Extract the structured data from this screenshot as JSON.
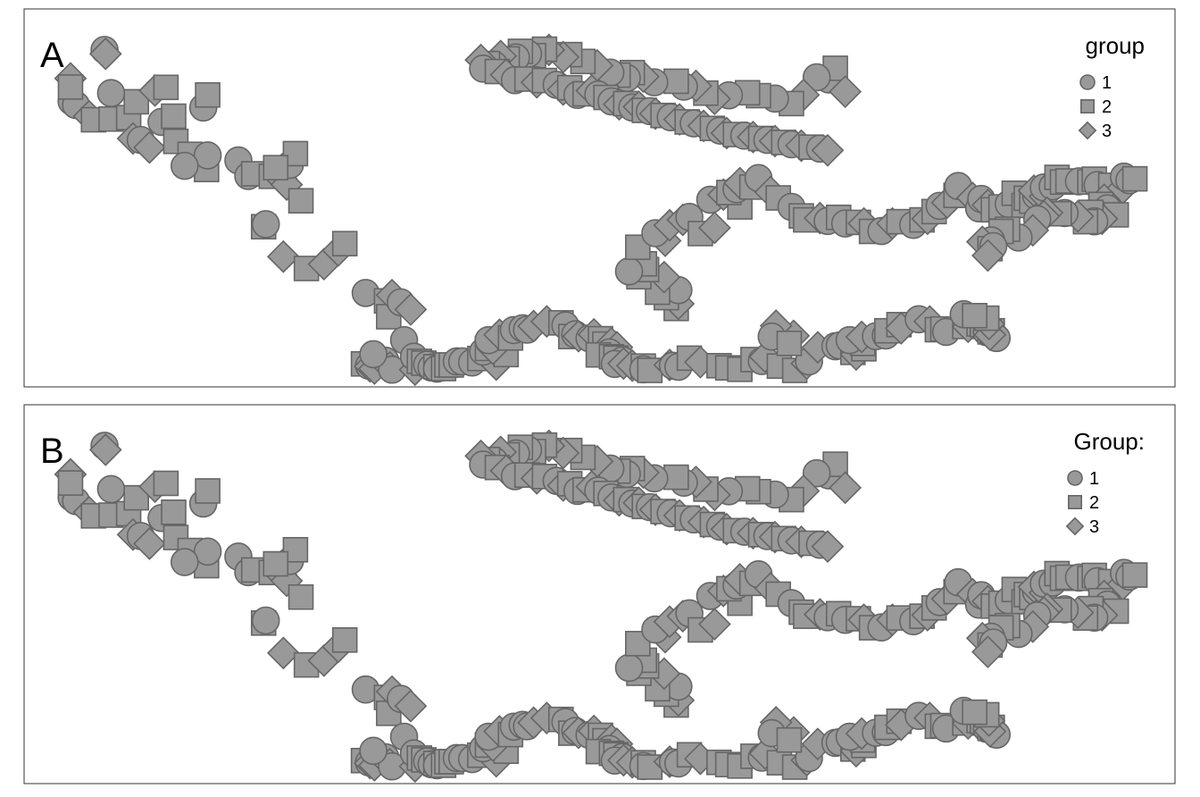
{
  "chart_data": {
    "type": "scatter",
    "xlim": [
      0,
      100
    ],
    "ylim": [
      0,
      100
    ],
    "grid": false,
    "legend_position": "top-right",
    "fill_color": "#999999",
    "stroke_color": "#666666",
    "shape_order": [
      "circle",
      "square",
      "diamond"
    ],
    "panels": [
      {
        "tag": "A",
        "legend_title": "group"
      },
      {
        "tag": "B",
        "legend_title": "Group:"
      }
    ],
    "groups": [
      {
        "label": "1",
        "shape": "circle"
      },
      {
        "label": "2",
        "shape": "square"
      },
      {
        "label": "3",
        "shape": "diamond"
      }
    ],
    "points": [
      [
        5.7,
        91.1,
        1
      ],
      [
        5.8,
        90.0,
        3
      ],
      [
        2.7,
        76.8,
        1
      ],
      [
        3.1,
        75.8,
        1
      ],
      [
        2.6,
        83.2,
        3
      ],
      [
        2.6,
        80.8,
        2
      ],
      [
        4.3,
        72.7,
        3
      ],
      [
        4.7,
        71.7,
        2
      ],
      [
        6.3,
        71.9,
        2
      ],
      [
        7.9,
        72.3,
        2
      ],
      [
        6.3,
        79.1,
        1
      ],
      [
        8.3,
        66.5,
        3
      ],
      [
        9.0,
        66.1,
        1
      ],
      [
        8.6,
        76.7,
        2
      ],
      [
        10.9,
        71.1,
        1
      ],
      [
        12.0,
        72.7,
        2
      ],
      [
        10.3,
        79.8,
        3
      ],
      [
        11.3,
        80.7,
        2
      ],
      [
        9.8,
        64.0,
        3
      ],
      [
        12.2,
        65.7,
        2
      ],
      [
        13.5,
        62.1,
        2
      ],
      [
        15.0,
        57.9,
        2
      ],
      [
        15.1,
        61.8,
        1
      ],
      [
        13.0,
        58.9,
        1
      ],
      [
        14.7,
        75.1,
        1
      ],
      [
        15.1,
        78.6,
        2
      ],
      [
        17.9,
        60.4,
        1
      ],
      [
        18.8,
        56.1,
        1
      ],
      [
        19.3,
        56.7,
        2
      ],
      [
        20.9,
        56.0,
        2
      ],
      [
        21.8,
        55.4,
        3
      ],
      [
        22.3,
        53.7,
        3
      ],
      [
        22.6,
        59.2,
        1
      ],
      [
        23.1,
        62.3,
        2
      ],
      [
        21.3,
        58.4,
        2
      ],
      [
        23.6,
        49.2,
        2
      ],
      [
        20.2,
        42.0,
        2
      ],
      [
        20.4,
        42.7,
        1
      ],
      [
        22.0,
        33.7,
        3
      ],
      [
        24.1,
        30.4,
        2
      ],
      [
        25.7,
        31.6,
        3
      ],
      [
        27.0,
        35.4,
        3
      ],
      [
        27.6,
        37.3,
        2
      ],
      [
        29.5,
        23.6,
        1
      ],
      [
        31.4,
        21.4,
        2
      ],
      [
        31.6,
        17.0,
        2
      ],
      [
        31.9,
        23.0,
        3
      ],
      [
        32.7,
        21.0,
        1
      ],
      [
        33.6,
        19.0,
        3
      ],
      [
        33.0,
        10.5,
        1
      ],
      [
        31.3,
        4.8,
        1
      ],
      [
        29.3,
        3.9,
        2
      ],
      [
        29.8,
        3.4,
        1
      ],
      [
        29.9,
        3.2,
        3
      ],
      [
        30.3,
        2.6,
        3
      ],
      [
        31.7,
        2.9,
        3
      ],
      [
        31.9,
        2.3,
        1
      ],
      [
        34.0,
        2.3,
        3
      ],
      [
        30.2,
        6.6,
        1
      ],
      [
        33.9,
        5.9,
        1
      ],
      [
        34.4,
        4.6,
        2
      ],
      [
        34.8,
        4.1,
        2
      ],
      [
        35.1,
        3.7,
        1
      ],
      [
        35.5,
        2.9,
        1
      ],
      [
        35.9,
        3.1,
        2
      ],
      [
        36.0,
        2.6,
        1
      ],
      [
        36.6,
        2.6,
        2
      ],
      [
        36.9,
        3.6,
        2
      ],
      [
        37.3,
        3.6,
        2
      ],
      [
        37.8,
        4.6,
        1
      ],
      [
        38.3,
        4.6,
        1
      ],
      [
        39.2,
        4.3,
        1
      ],
      [
        39.9,
        5.4,
        2
      ],
      [
        41.4,
        3.7,
        3
      ],
      [
        40.2,
        7.3,
        1
      ],
      [
        40.6,
        8.2,
        2
      ],
      [
        41.5,
        7.8,
        3
      ],
      [
        42.3,
        6.5,
        2
      ],
      [
        41.1,
        8.1,
        3
      ],
      [
        40.7,
        10.5,
        1
      ],
      [
        41.7,
        12.0,
        3
      ],
      [
        42.7,
        11.1,
        2
      ],
      [
        43.0,
        13.3,
        1
      ],
      [
        43.8,
        13.8,
        1
      ],
      [
        44.2,
        13.4,
        1
      ],
      [
        44.8,
        14.4,
        3
      ],
      [
        46.0,
        15.7,
        3
      ],
      [
        47.3,
        15.3,
        2
      ],
      [
        47.7,
        14.6,
        1
      ],
      [
        48.2,
        11.5,
        2
      ],
      [
        48.6,
        12.1,
        1
      ],
      [
        48.9,
        11.6,
        3
      ],
      [
        49.9,
        11.0,
        1
      ],
      [
        50.3,
        12.1,
        3
      ],
      [
        50.9,
        10.9,
        2
      ],
      [
        51.3,
        9.4,
        2
      ],
      [
        51.9,
        9.6,
        3
      ],
      [
        52.4,
        8.5,
        3
      ],
      [
        51.7,
        7.1,
        1
      ],
      [
        50.7,
        6.4,
        2
      ],
      [
        51.9,
        5.9,
        2
      ],
      [
        52.3,
        5.5,
        2
      ],
      [
        52.9,
        4.9,
        1
      ],
      [
        52.2,
        3.9,
        1
      ],
      [
        53.0,
        4.0,
        3
      ],
      [
        53.8,
        3.4,
        3
      ],
      [
        54.8,
        3.3,
        2
      ],
      [
        54.8,
        2.4,
        1
      ],
      [
        55.4,
        2.1,
        2
      ],
      [
        57.2,
        3.6,
        3
      ],
      [
        57.5,
        3.4,
        1
      ],
      [
        58.0,
        3.1,
        1
      ],
      [
        59.0,
        5.5,
        2
      ],
      [
        60.0,
        4.4,
        3
      ],
      [
        61.7,
        3.4,
        2
      ],
      [
        62.5,
        2.8,
        2
      ],
      [
        63.6,
        2.4,
        2
      ],
      [
        64.8,
        5.1,
        2
      ],
      [
        65.6,
        4.7,
        1
      ],
      [
        65.9,
        5.9,
        3
      ],
      [
        67.2,
        3.3,
        2
      ],
      [
        68.6,
        2.1,
        2
      ],
      [
        69.7,
        4.0,
        3
      ],
      [
        69.9,
        4.6,
        1
      ],
      [
        68.5,
        11.7,
        3
      ],
      [
        66.9,
        14.5,
        3
      ],
      [
        66.5,
        11.5,
        1
      ],
      [
        68.1,
        9.6,
        2
      ],
      [
        70.7,
        8.5,
        3
      ],
      [
        72.3,
        8.8,
        1
      ],
      [
        72.7,
        9.0,
        1
      ],
      [
        73.9,
        7.1,
        2
      ],
      [
        74.2,
        6.5,
        3
      ],
      [
        74.9,
        8.1,
        2
      ],
      [
        74.8,
        9.6,
        2
      ],
      [
        73.6,
        10.5,
        1
      ],
      [
        74.7,
        11.4,
        3
      ],
      [
        76.0,
        11.6,
        1
      ],
      [
        76.9,
        11.8,
        1
      ],
      [
        77.0,
        13.1,
        2
      ],
      [
        78.1,
        14.8,
        2
      ],
      [
        78.3,
        13.8,
        3
      ],
      [
        79.9,
        16.3,
        1
      ],
      [
        80.9,
        15.7,
        3
      ],
      [
        81.6,
        13.4,
        2
      ],
      [
        82.1,
        13.6,
        2
      ],
      [
        82.4,
        12.8,
        1
      ],
      [
        84.1,
        14.3,
        2
      ],
      [
        84.4,
        14.2,
        3
      ],
      [
        85.4,
        15.0,
        2
      ],
      [
        85.7,
        14.8,
        2
      ],
      [
        86.1,
        12.7,
        1
      ],
      [
        86.4,
        12.8,
        2
      ],
      [
        86.6,
        13.1,
        2
      ],
      [
        87.0,
        11.1,
        1
      ],
      [
        86.4,
        12.0,
        3
      ],
      [
        86.3,
        15.0,
        3
      ],
      [
        86.1,
        16.6,
        2
      ],
      [
        84.0,
        17.7,
        1
      ],
      [
        85.0,
        17.3,
        2
      ],
      [
        57.8,
        19.3,
        2
      ],
      [
        58.0,
        20.6,
        3
      ],
      [
        56.9,
        22.3,
        2
      ],
      [
        58.0,
        24.4,
        1
      ],
      [
        56.1,
        23.8,
        2
      ],
      [
        56.7,
        28.0,
        3
      ],
      [
        54.4,
        28.1,
        2
      ],
      [
        55.1,
        30.1,
        2
      ],
      [
        54.9,
        31.7,
        2
      ],
      [
        53.5,
        29.6,
        1
      ],
      [
        54.3,
        36.3,
        2
      ],
      [
        56.8,
        38.1,
        3
      ],
      [
        55.9,
        40.2,
        1
      ],
      [
        57.2,
        42.4,
        3
      ],
      [
        58.4,
        43.9,
        3
      ],
      [
        59.0,
        44.7,
        1
      ],
      [
        60.0,
        40.1,
        2
      ],
      [
        61.3,
        41.7,
        3
      ],
      [
        63.6,
        47.5,
        2
      ],
      [
        60.9,
        49.5,
        1
      ],
      [
        62.1,
        50.9,
        3
      ],
      [
        62.6,
        51.5,
        2
      ],
      [
        63.3,
        52.4,
        1
      ],
      [
        63.6,
        54.1,
        3
      ],
      [
        64.7,
        53.0,
        2
      ],
      [
        65.3,
        55.5,
        1
      ],
      [
        66.4,
        51.6,
        3
      ],
      [
        67.1,
        50.0,
        2
      ],
      [
        68.3,
        47.5,
        1
      ],
      [
        69.2,
        45.0,
        2
      ],
      [
        69.6,
        43.9,
        2
      ],
      [
        70.9,
        44.4,
        3
      ],
      [
        71.6,
        43.6,
        1
      ],
      [
        72.6,
        44.6,
        2
      ],
      [
        73.2,
        42.9,
        1
      ],
      [
        74.4,
        43.2,
        2
      ],
      [
        74.9,
        42.9,
        3
      ],
      [
        75.6,
        40.7,
        2
      ],
      [
        76.5,
        40.8,
        1
      ],
      [
        77.5,
        42.9,
        3
      ],
      [
        78.1,
        43.4,
        2
      ],
      [
        79.4,
        42.5,
        1
      ],
      [
        80.2,
        43.9,
        2
      ],
      [
        80.7,
        44.2,
        3
      ],
      [
        81.3,
        46.2,
        2
      ],
      [
        81.8,
        47.8,
        1
      ],
      [
        82.5,
        48.7,
        3
      ],
      [
        83.3,
        50.7,
        2
      ],
      [
        83.5,
        53.3,
        1
      ],
      [
        84.8,
        50.0,
        3
      ],
      [
        85.4,
        47.1,
        1
      ],
      [
        85.6,
        49.7,
        1
      ],
      [
        86.2,
        48.0,
        3
      ],
      [
        86.7,
        46.7,
        2
      ],
      [
        87.4,
        47.5,
        2
      ],
      [
        88.1,
        48.3,
        1
      ],
      [
        88.6,
        51.3,
        2
      ],
      [
        89.5,
        47.9,
        2
      ],
      [
        89.7,
        49.9,
        2
      ],
      [
        90.2,
        49.1,
        2
      ],
      [
        90.6,
        50.6,
        1
      ],
      [
        90.4,
        52.0,
        3
      ],
      [
        91.4,
        50.4,
        3
      ],
      [
        91.3,
        52.9,
        1
      ],
      [
        92.1,
        53.2,
        1
      ],
      [
        92.5,
        55.7,
        2
      ],
      [
        93.0,
        54.4,
        2
      ],
      [
        93.5,
        54.7,
        2
      ],
      [
        94.5,
        54.6,
        1
      ],
      [
        95.5,
        54.4,
        2
      ],
      [
        95.9,
        55.2,
        2
      ],
      [
        96.2,
        53.6,
        1
      ],
      [
        97.4,
        53.5,
        2
      ],
      [
        98.5,
        52.7,
        3
      ],
      [
        98.6,
        55.9,
        1
      ],
      [
        99.1,
        54.9,
        1
      ],
      [
        99.6,
        55.3,
        2
      ],
      [
        96.8,
        49.5,
        3
      ],
      [
        96.5,
        48.2,
        2
      ],
      [
        97.1,
        47.1,
        1
      ],
      [
        97.9,
        45.3,
        2
      ],
      [
        96.6,
        44.2,
        3
      ],
      [
        95.6,
        46.0,
        2
      ],
      [
        95.9,
        43.5,
        1
      ],
      [
        95.1,
        43.4,
        2
      ],
      [
        94.4,
        44.9,
        3
      ],
      [
        93.2,
        45.8,
        1
      ],
      [
        92.7,
        45.6,
        2
      ],
      [
        91.6,
        45.9,
        3
      ],
      [
        91.3,
        44.9,
        3
      ],
      [
        90.7,
        44.1,
        1
      ],
      [
        90.3,
        41.0,
        3
      ],
      [
        89.0,
        39.0,
        1
      ],
      [
        88.0,
        41.3,
        2
      ],
      [
        87.4,
        40.7,
        2
      ],
      [
        86.5,
        38.2,
        1
      ],
      [
        85.7,
        37.8,
        3
      ],
      [
        86.4,
        35.9,
        2
      ],
      [
        86.7,
        36.6,
        1
      ],
      [
        86.2,
        34.0,
        3
      ],
      [
        71.7,
        82.9,
        1
      ],
      [
        72.3,
        86.0,
        2
      ],
      [
        73.2,
        79.5,
        3
      ],
      [
        70.6,
        83.5,
        1
      ],
      [
        69.4,
        78.6,
        3
      ],
      [
        68.3,
        76.2,
        2
      ],
      [
        66.8,
        77.6,
        1
      ],
      [
        65.3,
        78.4,
        2
      ],
      [
        64.3,
        79.2,
        2
      ],
      [
        62.6,
        78.5,
        1
      ],
      [
        61.3,
        77.5,
        3
      ],
      [
        60.5,
        79.1,
        2
      ],
      [
        59.6,
        81.1,
        3
      ],
      [
        58.5,
        80.9,
        1
      ],
      [
        57.8,
        82.4,
        2
      ],
      [
        55.8,
        82.1,
        1
      ],
      [
        54.8,
        83.7,
        3
      ],
      [
        53.8,
        84.8,
        2
      ],
      [
        53.3,
        83.3,
        1
      ],
      [
        52.5,
        84.1,
        2
      ],
      [
        51.8,
        84.8,
        1
      ],
      [
        50.6,
        86.8,
        3
      ],
      [
        49.3,
        87.9,
        2
      ],
      [
        48.1,
        89.8,
        2
      ],
      [
        47.5,
        89.1,
        3
      ],
      [
        46.2,
        91.1,
        3
      ],
      [
        45.8,
        91.3,
        2
      ],
      [
        44.8,
        89.5,
        2
      ],
      [
        44.3,
        90.0,
        1
      ],
      [
        43.6,
        90.7,
        2
      ],
      [
        43.2,
        89.0,
        1
      ],
      [
        42.4,
        88.6,
        2
      ],
      [
        41.8,
        89.4,
        3
      ],
      [
        41.2,
        87.0,
        1
      ],
      [
        40.6,
        87.3,
        2
      ],
      [
        40.0,
        88.3,
        3
      ],
      [
        40.2,
        85.9,
        1
      ],
      [
        41.5,
        85.1,
        2
      ],
      [
        42.3,
        84.2,
        3
      ],
      [
        43.1,
        82.7,
        1
      ],
      [
        44.2,
        83.0,
        2
      ],
      [
        45.1,
        82.1,
        3
      ],
      [
        45.8,
        82.6,
        2
      ],
      [
        46.9,
        81.4,
        1
      ],
      [
        47.5,
        80.1,
        3
      ],
      [
        48.1,
        80.6,
        2
      ],
      [
        48.8,
        78.6,
        1
      ],
      [
        49.5,
        78.9,
        2
      ],
      [
        50.1,
        79.8,
        3
      ],
      [
        50.7,
        78.7,
        1
      ],
      [
        51.4,
        77.9,
        2
      ],
      [
        51.9,
        76.8,
        1
      ],
      [
        52.6,
        76.0,
        3
      ],
      [
        53.2,
        76.2,
        2
      ],
      [
        53.8,
        75.1,
        1
      ],
      [
        54.4,
        75.3,
        3
      ],
      [
        54.9,
        74.3,
        2
      ],
      [
        55.4,
        74.1,
        1
      ],
      [
        55.9,
        73.4,
        3
      ],
      [
        56.6,
        72.9,
        2
      ],
      [
        57.3,
        72.4,
        1
      ],
      [
        58.1,
        71.8,
        3
      ],
      [
        58.8,
        71.1,
        2
      ],
      [
        59.4,
        70.7,
        1
      ],
      [
        60.3,
        70.0,
        3
      ],
      [
        61.1,
        69.3,
        2
      ],
      [
        61.8,
        68.7,
        1
      ],
      [
        62.4,
        68.0,
        3
      ],
      [
        63.2,
        67.6,
        2
      ],
      [
        64.0,
        67.3,
        1
      ],
      [
        64.8,
        66.9,
        3
      ],
      [
        65.5,
        66.5,
        2
      ],
      [
        66.1,
        66.1,
        1
      ],
      [
        66.8,
        65.8,
        3
      ],
      [
        67.6,
        65.4,
        2
      ],
      [
        68.3,
        64.9,
        1
      ],
      [
        69.2,
        64.5,
        3
      ],
      [
        70.1,
        64.1,
        2
      ],
      [
        70.9,
        63.7,
        1
      ],
      [
        71.6,
        63.2,
        3
      ]
    ]
  }
}
